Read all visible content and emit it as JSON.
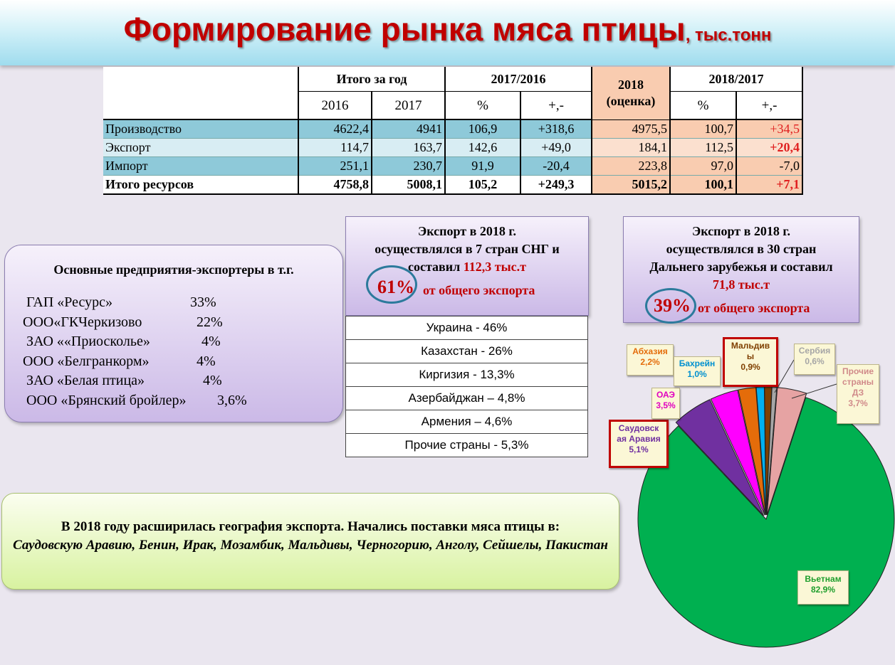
{
  "title": {
    "main": "Формирование рынка мяса птицы",
    "unit": ", тыс.тонн"
  },
  "table": {
    "header_total": "Итого за год",
    "header_ratio1": "2017/2016",
    "header_est_line1": "2018",
    "header_est_line2": "(оценка)",
    "header_ratio2": "2018/2017",
    "sub": {
      "y2016": "2016",
      "y2017": "2017",
      "pct1": "%",
      "pm1": "+,-",
      "pct2": "%",
      "pm2": "+,-"
    },
    "rows": [
      {
        "label": "Производство",
        "v2016": "4622,4",
        "v2017": "4941",
        "pct1": "106,9",
        "pm1": "+318,6",
        "est": "4975,5",
        "pct2": "100,7",
        "pm2": "+34,5"
      },
      {
        "label": "Экспорт",
        "v2016": "114,7",
        "v2017": "163,7",
        "pct1": "142,6",
        "pm1": "+49,0",
        "est": "184,1",
        "pct2": "112,5",
        "pm2": "+20,4"
      },
      {
        "label": "Импорт",
        "v2016": "251,1",
        "v2017": "230,7",
        "pct1": "91,9",
        "pm1": "-20,4",
        "est": "223,8",
        "pct2": "97,0",
        "pm2": "-7,0"
      },
      {
        "label": "Итого ресурсов",
        "v2016": "4758,8",
        "v2017": "5008,1",
        "pct1": "105,2",
        "pm1": "+249,3",
        "est": "5015,2",
        "pct2": "100,1",
        "pm2": "+7,1"
      }
    ]
  },
  "exporters": {
    "heading": "Основные предприятия-экспортеры в т.г.",
    "items": [
      {
        "name": "ГАП «Ресурс»",
        "share": "33%"
      },
      {
        "name": "ООО«ГКЧеркизово",
        "share": "22%"
      },
      {
        "name": "ЗАО ««Приосколье»",
        "share": "4%"
      },
      {
        "name": "ООО «Белгранкорм»",
        "share": "4%"
      },
      {
        "name": "ЗАО «Белая птица»",
        "share": "4%"
      },
      {
        "name": "ООО «Брянский бройлер»",
        "share": "3,6%"
      }
    ]
  },
  "cis_box": {
    "line1": "Экспорт в 2018 г.",
    "line2": "осуществлялся в 7 стран СНГ и",
    "line3a": "составил ",
    "line3b": "112,3 тыс.т",
    "pct": "61%",
    "of_total": "от общего экспорта",
    "countries": [
      "Украина  -  46%",
      "Казахстан  -  26%",
      "Киргизия  -  13,3%",
      "Азербайджан – 4,8%",
      "Армения – 4,6%",
      "Прочие страны -  5,3%"
    ]
  },
  "far_box": {
    "line1": "Экспорт в 2018 г.",
    "line2": "осуществлялся в 30 стран",
    "line3": "Дальнего зарубежья и составил",
    "line4": "71,8 тыс.т",
    "pct": "39%",
    "of_total": "от общего экспорта"
  },
  "geography": {
    "line1": "В 2018 году расширилась география экспорта. Начались поставки мяса птицы в:",
    "line2": "Саудовскую Аравию, Бенин, Ирак, Мозамбик, Мальдивы, Черногорию, Анголу, Сейшелы, Пакистан"
  },
  "chart_data": {
    "type": "pie",
    "slices": [
      {
        "label": "Вьетнам",
        "value": 82.9,
        "value_label": "82,9%",
        "color": "#00b050",
        "label_color": "#1e9e2c"
      },
      {
        "label": "Саудовская Аравия",
        "value": 5.1,
        "value_label": "5,1%",
        "color": "#7030a0",
        "label_color": "#7030a0"
      },
      {
        "label": "ОАЭ",
        "value": 3.5,
        "value_label": "3,5%",
        "color": "#ff00ff",
        "label_color": "#e000c0"
      },
      {
        "label": "Абхазия",
        "value": 2.2,
        "value_label": "2,2%",
        "color": "#e46c0a",
        "label_color": "#e46c0a"
      },
      {
        "label": "Бахрейн",
        "value": 1.0,
        "value_label": "1,0%",
        "color": "#00b0f0",
        "label_color": "#0090d0"
      },
      {
        "label": "Мальдивы",
        "value": 0.9,
        "value_label": "0,9%",
        "color": "#7f3f00",
        "label_color": "#7f3f00"
      },
      {
        "label": "Сербия",
        "value": 0.6,
        "value_label": "0,6%",
        "color": "#a6a6a6",
        "label_color": "#a6a6a6"
      },
      {
        "label": "Прочие страны ДЗ",
        "value": 3.7,
        "value_label": "3,7%",
        "color": "#e6a3a3",
        "label_color": "#d08a8a"
      }
    ]
  }
}
